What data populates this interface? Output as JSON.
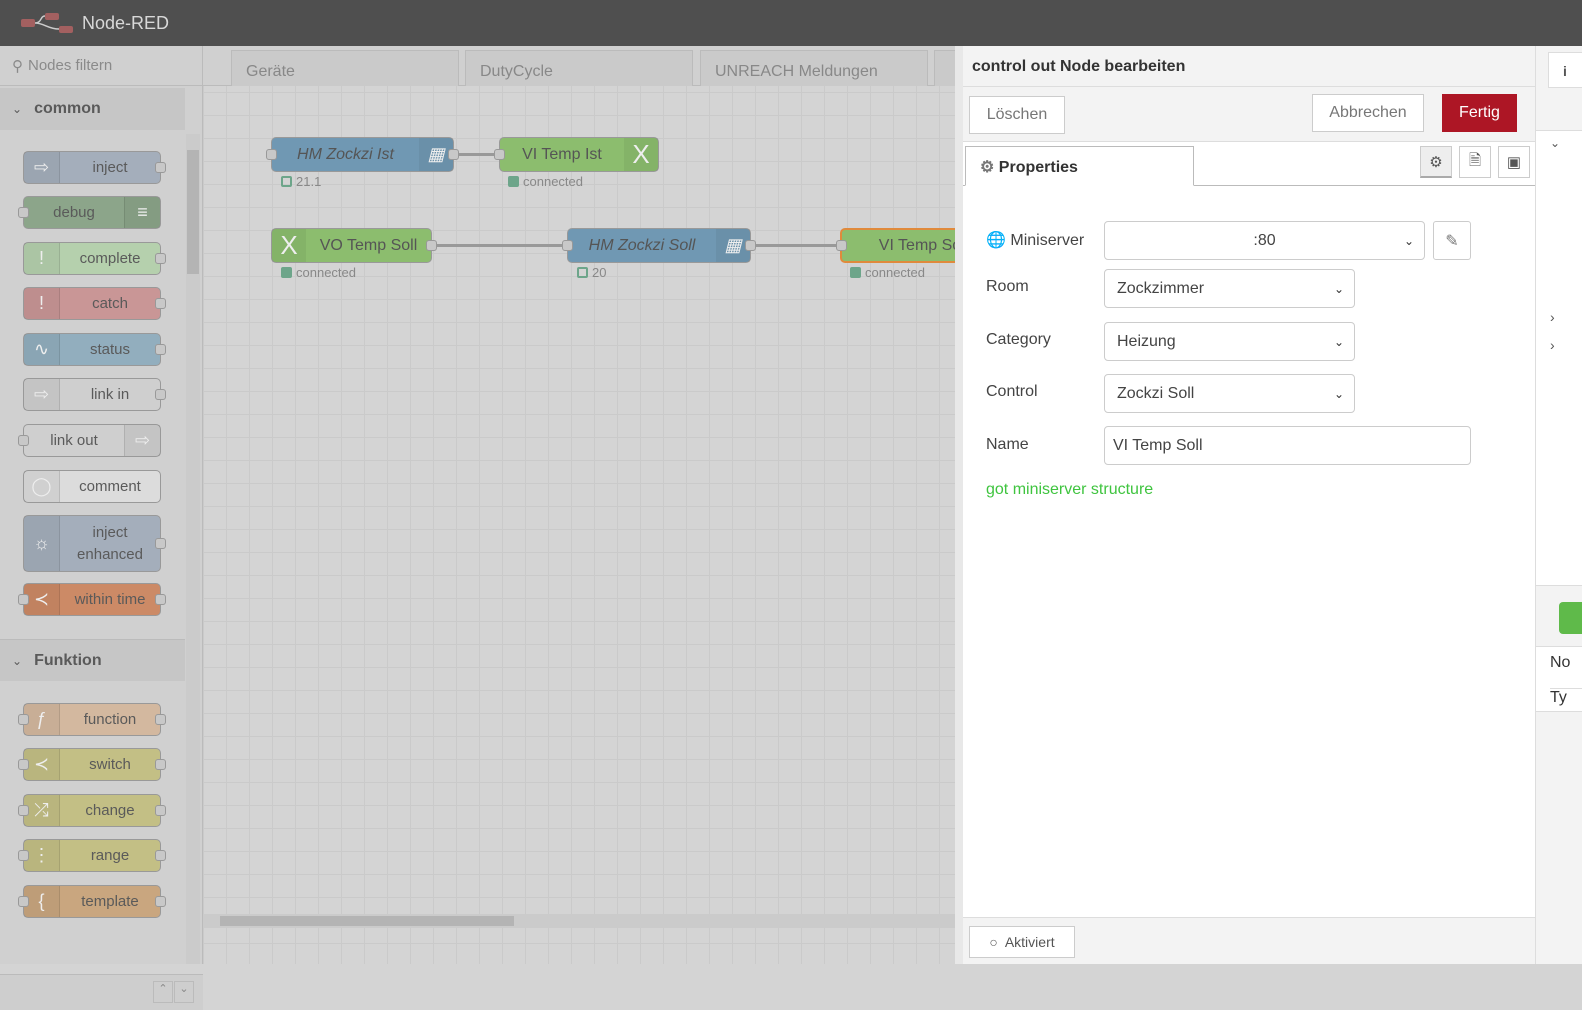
{
  "header": {
    "title": "Node-RED"
  },
  "palette": {
    "filter_placeholder": "Nodes filtern",
    "categories": [
      {
        "name": "common",
        "nodes": [
          {
            "label": "inject",
            "color": "#a4aebb",
            "icon": "arrow-in-icon"
          },
          {
            "label": "debug",
            "color": "#8ca58a",
            "icon": "list-icon"
          },
          {
            "label": "complete",
            "color": "#b5d0ad",
            "icon": "exclamation-icon"
          },
          {
            "label": "catch",
            "color": "#c99696",
            "icon": "exclamation-icon"
          },
          {
            "label": "status",
            "color": "#92aebe",
            "icon": "pulse-icon"
          },
          {
            "label": "link in",
            "color": "#cfcfcf",
            "icon": "link-arrow-icon"
          },
          {
            "label": "link out",
            "color": "#cfcfcf",
            "icon": "link-arrow-icon"
          },
          {
            "label": "comment",
            "color": "#dcdcdc",
            "icon": "speech-bubble-icon"
          },
          {
            "label": "inject enhanced",
            "color": "#a4aebb",
            "icon": "sun-icon"
          },
          {
            "label": "within time",
            "color": "#cc8a66",
            "icon": "split-icon"
          }
        ]
      },
      {
        "name": "Funktion",
        "nodes": [
          {
            "label": "function",
            "color": "#d3b89f",
            "icon": "function-icon"
          },
          {
            "label": "switch",
            "color": "#c3bf85",
            "icon": "split-icon"
          },
          {
            "label": "change",
            "color": "#c3bf85",
            "icon": "shuffle-icon"
          },
          {
            "label": "range",
            "color": "#c3bf85",
            "icon": "range-icon"
          },
          {
            "label": "template",
            "color": "#c9a67f",
            "icon": "brace-icon"
          }
        ]
      }
    ]
  },
  "workspace": {
    "tabs": [
      "Geräte",
      "DutyCycle",
      "UNREACH Meldungen"
    ],
    "nodes": [
      {
        "label": "HM Zockzi Ist",
        "status": "21.1",
        "status_type": "ring"
      },
      {
        "label": "VI Temp Ist",
        "status": "connected",
        "status_type": "dot"
      },
      {
        "label": "VO Temp Soll",
        "status": "connected",
        "status_type": "dot"
      },
      {
        "label": "HM Zockzi Soll",
        "status": "20",
        "status_type": "ring"
      },
      {
        "label": "VI Temp So",
        "status": "connected",
        "status_type": "dot"
      }
    ]
  },
  "editor": {
    "title": "control out Node bearbeiten",
    "delete": "Löschen",
    "cancel": "Abbrechen",
    "done": "Fertig",
    "done_color": "#ad1625",
    "tab": "Properties",
    "fields": {
      "miniserver_label": "Miniserver",
      "miniserver": ":80",
      "room_label": "Room",
      "room": "Zockzimmer",
      "category_label": "Category",
      "category": "Heizung",
      "control_label": "Control",
      "control": "Zockzi Soll",
      "name_label": "Name",
      "name": "VI Temp Soll"
    },
    "status": "got miniserver structure",
    "status_color": "#3fc43f",
    "enabled": "Aktiviert"
  },
  "sidebar": {
    "rows": [
      "No",
      "Ty"
    ]
  }
}
